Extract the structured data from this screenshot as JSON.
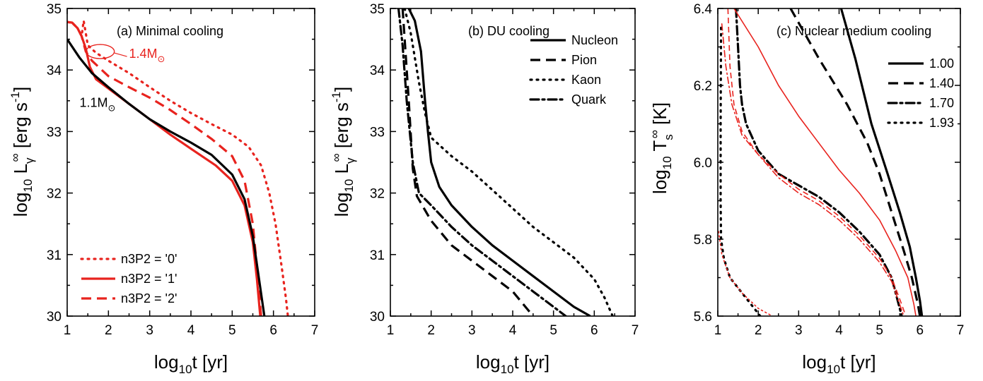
{
  "chart_data": [
    {
      "type": "line",
      "title": "(a) Minimal cooling",
      "xlabel": {
        "base": "log",
        "sub": "10",
        "rest": "t [yr]"
      },
      "ylabel": {
        "base": "log",
        "sub": "10",
        "mid": " L",
        "msub": "γ",
        "msup": "∞",
        "rest": " [erg s",
        "sup2": "-1",
        "end": "]"
      },
      "xlim": [
        1,
        7
      ],
      "ylim": [
        30,
        35
      ],
      "xticks": [
        "1",
        "2",
        "3",
        "4",
        "5",
        "6",
        "7"
      ],
      "yticks": [
        "30",
        "31",
        "32",
        "33",
        "34",
        "35"
      ],
      "legend_position": "bottom-left",
      "annotations": [
        {
          "text": "1.4M",
          "sub": "⊙",
          "color": "#e8231e",
          "x": 2.5,
          "y": 34.2
        },
        {
          "text": "1.1M",
          "sub": "⊙",
          "color": "#000000",
          "x": 1.3,
          "y": 33.4
        }
      ],
      "series": [
        {
          "name": "n3P2 = '0'",
          "color": "#e8231e",
          "style": "dot",
          "legend": true,
          "points": [
            [
              1,
              34.78
            ],
            [
              1.12,
              34.77
            ],
            [
              1.25,
              34.68
            ],
            [
              1.35,
              34.55
            ],
            [
              1.4,
              34.8
            ],
            [
              1.45,
              34.6
            ],
            [
              1.5,
              34.4
            ],
            [
              1.7,
              34.28
            ],
            [
              2,
              34.15
            ],
            [
              2.5,
              33.95
            ],
            [
              3,
              33.72
            ],
            [
              3.5,
              33.5
            ],
            [
              4,
              33.3
            ],
            [
              4.5,
              33.12
            ],
            [
              5,
              32.95
            ],
            [
              5.4,
              32.75
            ],
            [
              5.7,
              32.45
            ],
            [
              5.9,
              32.0
            ],
            [
              6.05,
              31.5
            ],
            [
              6.2,
              30.8
            ],
            [
              6.3,
              30.3
            ],
            [
              6.35,
              30.0
            ]
          ]
        },
        {
          "name": "n3P2 = '1'",
          "color": "#e8231e",
          "style": "solid",
          "legend": true,
          "points": [
            [
              1,
              34.78
            ],
            [
              1.12,
              34.77
            ],
            [
              1.25,
              34.68
            ],
            [
              1.35,
              34.55
            ],
            [
              1.45,
              34.35
            ],
            [
              1.55,
              34.05
            ],
            [
              1.7,
              33.85
            ],
            [
              2,
              33.7
            ],
            [
              2.5,
              33.45
            ],
            [
              3,
              33.2
            ],
            [
              3.5,
              32.95
            ],
            [
              4,
              32.72
            ],
            [
              4.6,
              32.45
            ],
            [
              5,
              32.2
            ],
            [
              5.3,
              31.8
            ],
            [
              5.5,
              31.2
            ],
            [
              5.6,
              30.6
            ],
            [
              5.68,
              30.0
            ]
          ]
        },
        {
          "name": "n3P2 = '2'",
          "color": "#e8231e",
          "style": "dash",
          "legend": true,
          "points": [
            [
              1,
              34.78
            ],
            [
              1.12,
              34.77
            ],
            [
              1.25,
              34.68
            ],
            [
              1.35,
              34.55
            ],
            [
              1.45,
              34.3
            ],
            [
              1.6,
              34.15
            ],
            [
              2,
              33.9
            ],
            [
              2.5,
              33.72
            ],
            [
              3,
              33.55
            ],
            [
              3.5,
              33.35
            ],
            [
              4,
              33.12
            ],
            [
              4.5,
              32.88
            ],
            [
              5,
              32.6
            ],
            [
              5.3,
              32.2
            ],
            [
              5.5,
              31.5
            ],
            [
              5.6,
              30.8
            ],
            [
              5.7,
              30.0
            ]
          ]
        },
        {
          "name": "",
          "color": "#000000",
          "style": "solid",
          "legend": false,
          "points": [
            [
              1,
              34.5
            ],
            [
              1.3,
              34.2
            ],
            [
              1.6,
              33.95
            ],
            [
              2,
              33.72
            ],
            [
              2.5,
              33.45
            ],
            [
              3,
              33.2
            ],
            [
              3.5,
              33.0
            ],
            [
              4,
              32.82
            ],
            [
              4.5,
              32.62
            ],
            [
              5,
              32.3
            ],
            [
              5.3,
              31.9
            ],
            [
              5.5,
              31.3
            ],
            [
              5.65,
              30.6
            ],
            [
              5.78,
              30.0
            ]
          ]
        }
      ]
    },
    {
      "type": "line",
      "title": "(b) DU cooling",
      "xlabel": {
        "base": "log",
        "sub": "10",
        "rest": "t [yr]"
      },
      "ylabel": {
        "base": "log",
        "sub": "10",
        "mid": " L",
        "msub": "γ",
        "msup": "∞",
        "rest": " [erg s",
        "sup2": "-1",
        "end": "]"
      },
      "xlim": [
        1,
        7
      ],
      "ylim": [
        30,
        35
      ],
      "xticks": [
        "1",
        "2",
        "3",
        "4",
        "5",
        "6",
        "7"
      ],
      "yticks": [
        "30",
        "31",
        "32",
        "33",
        "34",
        "35"
      ],
      "legend_position": "top-right",
      "annotations": [],
      "series": [
        {
          "name": "Nucleon",
          "color": "#000000",
          "style": "solid",
          "legend": true,
          "points": [
            [
              1.45,
              35.0
            ],
            [
              1.6,
              34.8
            ],
            [
              1.75,
              34.3
            ],
            [
              1.85,
              33.5
            ],
            [
              1.92,
              33.0
            ],
            [
              2.0,
              32.5
            ],
            [
              2.2,
              32.1
            ],
            [
              2.5,
              31.8
            ],
            [
              3,
              31.45
            ],
            [
              3.5,
              31.15
            ],
            [
              4,
              30.9
            ],
            [
              4.5,
              30.65
            ],
            [
              5,
              30.4
            ],
            [
              5.5,
              30.15
            ],
            [
              5.9,
              30.0
            ]
          ]
        },
        {
          "name": "Pion",
          "color": "#000000",
          "style": "dash",
          "legend": true,
          "points": [
            [
              1.3,
              35.0
            ],
            [
              1.35,
              34.5
            ],
            [
              1.45,
              33.5
            ],
            [
              1.55,
              32.4
            ],
            [
              1.65,
              31.95
            ],
            [
              2,
              31.55
            ],
            [
              2.5,
              31.15
            ],
            [
              3,
              30.9
            ],
            [
              3.5,
              30.65
            ],
            [
              4,
              30.4
            ],
            [
              4.5,
              30.0
            ]
          ]
        },
        {
          "name": "Kaon",
          "color": "#000000",
          "style": "dot",
          "legend": true,
          "points": [
            [
              1.35,
              35.0
            ],
            [
              1.5,
              34.6
            ],
            [
              1.7,
              33.8
            ],
            [
              1.85,
              33.3
            ],
            [
              2,
              32.9
            ],
            [
              2.5,
              32.6
            ],
            [
              3,
              32.35
            ],
            [
              3.5,
              32.05
            ],
            [
              4,
              31.75
            ],
            [
              4.5,
              31.45
            ],
            [
              5,
              31.2
            ],
            [
              5.5,
              30.95
            ],
            [
              6,
              30.6
            ],
            [
              6.25,
              30.3
            ],
            [
              6.45,
              30.0
            ]
          ]
        },
        {
          "name": "Quark",
          "color": "#000000",
          "style": "dashdot",
          "legend": true,
          "points": [
            [
              1.2,
              35.0
            ],
            [
              1.3,
              34.4
            ],
            [
              1.4,
              33.5
            ],
            [
              1.55,
              32.5
            ],
            [
              1.7,
              32.0
            ],
            [
              2,
              31.8
            ],
            [
              2.5,
              31.45
            ],
            [
              3,
              31.15
            ],
            [
              3.5,
              30.9
            ],
            [
              4,
              30.65
            ],
            [
              4.5,
              30.4
            ],
            [
              5,
              30.15
            ],
            [
              5.3,
              30.0
            ]
          ]
        }
      ]
    },
    {
      "type": "line",
      "title": "(c) Nuclear medium cooling",
      "xlabel": {
        "base": "log",
        "sub": "10",
        "rest": "t [yr]"
      },
      "ylabel": {
        "base": "log",
        "sub": "10",
        "mid": " T",
        "msub": "s",
        "msup": "∞",
        "rest": " [K]",
        "sup2": "",
        "end": ""
      },
      "xlim": [
        1,
        7
      ],
      "ylim": [
        5.6,
        6.4
      ],
      "xticks": [
        "1",
        "2",
        "3",
        "4",
        "5",
        "6",
        "7"
      ],
      "yticks": [
        "5.6",
        "5.8",
        "6.0",
        "6.2",
        "6.4"
      ],
      "legend_position": "top-right",
      "annotations": [],
      "series": [
        {
          "name": "1.00",
          "color": "#000000",
          "style": "solid",
          "legend": true,
          "points": [
            [
              4.05,
              6.4
            ],
            [
              4.4,
              6.27
            ],
            [
              4.8,
              6.1
            ],
            [
              5.2,
              5.97
            ],
            [
              5.5,
              5.87
            ],
            [
              5.75,
              5.78
            ],
            [
              5.9,
              5.7
            ],
            [
              6.0,
              5.64
            ],
            [
              6.05,
              5.6
            ]
          ]
        },
        {
          "name": "1.40",
          "color": "#000000",
          "style": "dash",
          "legend": true,
          "points": [
            [
              2.8,
              6.4
            ],
            [
              3.5,
              6.27
            ],
            [
              4.2,
              6.15
            ],
            [
              4.7,
              6.05
            ],
            [
              5.0,
              5.97
            ],
            [
              5.3,
              5.87
            ],
            [
              5.6,
              5.77
            ],
            [
              5.8,
              5.7
            ],
            [
              5.95,
              5.63
            ],
            [
              6.0,
              5.6
            ]
          ]
        },
        {
          "name": "1.70",
          "color": "#000000",
          "style": "dashdot",
          "legend": true,
          "points": [
            [
              1.45,
              6.4
            ],
            [
              1.5,
              6.3
            ],
            [
              1.55,
              6.2
            ],
            [
              1.6,
              6.15
            ],
            [
              1.7,
              6.1
            ],
            [
              2,
              6.03
            ],
            [
              2.5,
              5.97
            ],
            [
              3,
              5.94
            ],
            [
              3.5,
              5.91
            ],
            [
              4,
              5.87
            ],
            [
              4.5,
              5.82
            ],
            [
              5,
              5.76
            ],
            [
              5.3,
              5.7
            ],
            [
              5.45,
              5.64
            ],
            [
              5.55,
              5.6
            ]
          ]
        },
        {
          "name": "1.93",
          "color": "#000000",
          "style": "dot",
          "legend": true,
          "points": [
            [
              1.08,
              6.35
            ],
            [
              1.07,
              6.1
            ],
            [
              1.07,
              5.9
            ],
            [
              1.08,
              5.8
            ],
            [
              1.15,
              5.75
            ],
            [
              1.3,
              5.7
            ],
            [
              1.6,
              5.66
            ],
            [
              1.9,
              5.62
            ],
            [
              2.05,
              5.6
            ]
          ]
        },
        {
          "name": "",
          "color": "#e8231e",
          "style": "thin-solid",
          "legend": false,
          "points": [
            [
              1.4,
              6.4
            ],
            [
              2,
              6.3
            ],
            [
              2.5,
              6.2
            ],
            [
              3,
              6.12
            ],
            [
              3.5,
              6.05
            ],
            [
              4,
              5.98
            ],
            [
              4.5,
              5.92
            ],
            [
              5,
              5.85
            ],
            [
              5.4,
              5.77
            ],
            [
              5.7,
              5.7
            ],
            [
              5.85,
              5.63
            ],
            [
              5.9,
              5.6
            ]
          ]
        },
        {
          "name": "",
          "color": "#e8231e",
          "style": "thin-dash",
          "legend": false,
          "points": [
            [
              1.25,
              6.4
            ],
            [
              1.3,
              6.25
            ],
            [
              1.4,
              6.15
            ],
            [
              1.6,
              6.08
            ],
            [
              2,
              6.02
            ],
            [
              2.5,
              5.97
            ],
            [
              3,
              5.93
            ],
            [
              3.5,
              5.9
            ],
            [
              4,
              5.86
            ],
            [
              4.5,
              5.81
            ],
            [
              5,
              5.75
            ],
            [
              5.3,
              5.7
            ],
            [
              5.55,
              5.63
            ],
            [
              5.65,
              5.6
            ]
          ]
        },
        {
          "name": "",
          "color": "#e8231e",
          "style": "thin-dashdot",
          "legend": false,
          "points": [
            [
              1.1,
              6.36
            ],
            [
              1.2,
              6.25
            ],
            [
              1.35,
              6.15
            ],
            [
              1.6,
              6.07
            ],
            [
              2,
              6.02
            ],
            [
              2.5,
              5.96
            ],
            [
              3,
              5.92
            ],
            [
              3.5,
              5.89
            ],
            [
              4,
              5.85
            ],
            [
              4.5,
              5.8
            ],
            [
              5,
              5.74
            ],
            [
              5.3,
              5.69
            ],
            [
              5.5,
              5.63
            ],
            [
              5.6,
              5.6
            ]
          ]
        },
        {
          "name": "",
          "color": "#e8231e",
          "style": "thin-dot",
          "legend": false,
          "points": [
            [
              1.02,
              5.82
            ],
            [
              1.1,
              5.76
            ],
            [
              1.3,
              5.7
            ],
            [
              1.6,
              5.66
            ],
            [
              2,
              5.62
            ],
            [
              2.35,
              5.6
            ]
          ]
        }
      ]
    }
  ]
}
